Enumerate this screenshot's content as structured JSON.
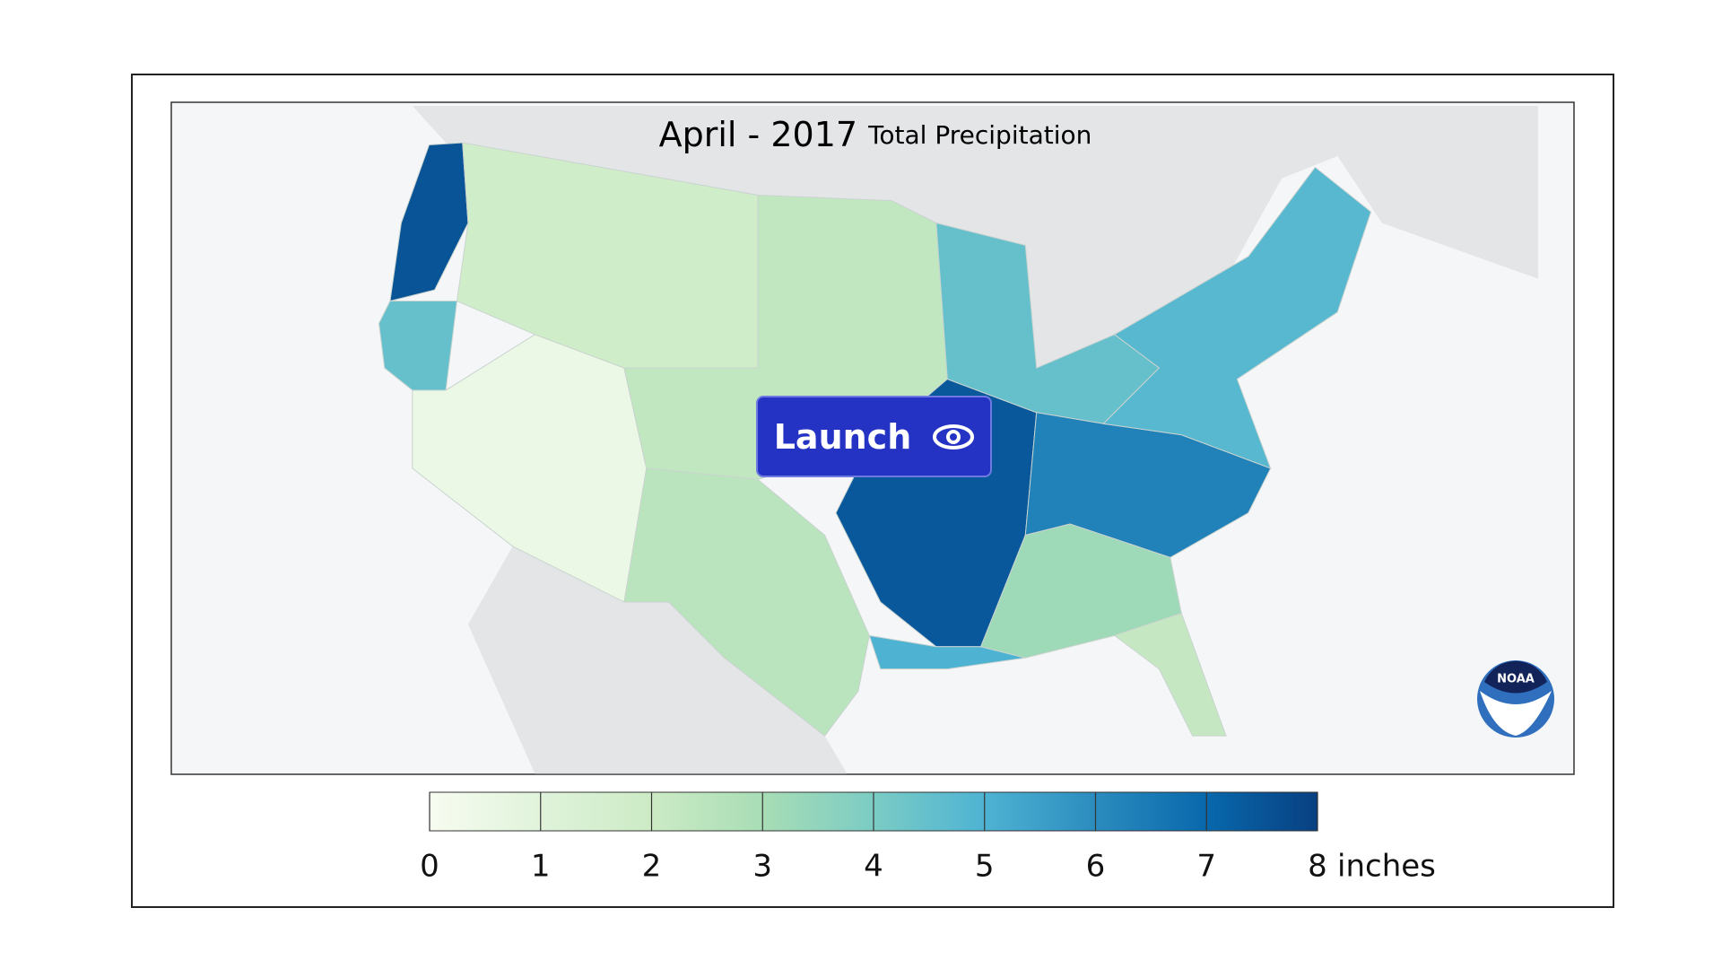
{
  "title": "April - 2017",
  "subtitle": "Total Precipitation",
  "button": "Launch",
  "logo": "NOAA",
  "map": {
    "regions": [
      7.5,
      4.5,
      0.5,
      1.8,
      2.3,
      2.5,
      7.4,
      5,
      4.5,
      6.3,
      3.2,
      2.2,
      4.8
    ]
  },
  "legend": {
    "ticks": [
      0,
      1,
      2,
      3,
      4,
      5,
      6,
      7,
      8
    ],
    "unit": "inches",
    "colors": [
      "#f7fcf0",
      "#e0f3db",
      "#ccebc5",
      "#a8ddb5",
      "#7bccc4",
      "#4eb3d3",
      "#2b8cbe",
      "#0868ac",
      "#084081"
    ]
  }
}
